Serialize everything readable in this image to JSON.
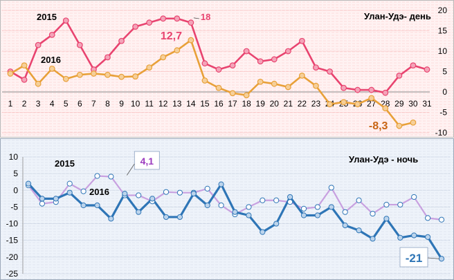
{
  "colors": {
    "day_2015": "#e8436f",
    "day_2016": "#e8a038",
    "night_2015": "#c8a0e0",
    "night_2016": "#2e75b6",
    "grid_top": "#f4a0a0",
    "grid_bottom": "#b8c4d6",
    "label_18": "#e8436f",
    "label_12_7": "#e8436f",
    "label_minus_8_3": "#c86414",
    "label_4_1": "#9b3bbf",
    "label_minus_21": "#2e75b6"
  },
  "chart_data": [
    {
      "type": "line",
      "title": "Улан-Удэ- день",
      "x": [
        1,
        2,
        3,
        4,
        5,
        6,
        7,
        8,
        9,
        10,
        11,
        12,
        13,
        14,
        15,
        16,
        17,
        18,
        19,
        20,
        21,
        22,
        23,
        24,
        25,
        26,
        27,
        28,
        29,
        30,
        31
      ],
      "x_tick_labels": [
        "1",
        "2",
        "3",
        "4",
        "5",
        "6",
        "7",
        "8",
        "9",
        "10",
        "11",
        "12",
        "13",
        "14",
        "15",
        "16",
        "17",
        "18",
        "19",
        "20",
        "21",
        "22",
        "23",
        "24",
        "25",
        "26",
        "27",
        "28",
        "29",
        "30",
        "31"
      ],
      "y_ticks": [
        -10,
        -5,
        0,
        5,
        10,
        15,
        20
      ],
      "ylim": [
        -10,
        20
      ],
      "y_axis_side": "right",
      "grid": true,
      "series": [
        {
          "name": "2015",
          "values": [
            5,
            3,
            11.5,
            14,
            17.5,
            11.5,
            5.5,
            8.5,
            12.5,
            16,
            17,
            18,
            18,
            17,
            7,
            5.5,
            6.5,
            10,
            7.5,
            8,
            10,
            12.5,
            6,
            5,
            1,
            0.5,
            0.5,
            -0.2,
            4,
            6.5,
            5.5
          ]
        },
        {
          "name": "2016",
          "values": [
            4.5,
            6.5,
            2,
            5.7,
            3.2,
            4.2,
            4.5,
            4.2,
            3.7,
            3.8,
            6,
            8.5,
            10.2,
            12.7,
            2.8,
            1,
            -0.3,
            -0.8,
            2.5,
            2,
            1.2,
            4,
            1.5,
            -3,
            -2.5,
            -3,
            -1.5,
            -4,
            -8.3,
            -7.5,
            null
          ]
        }
      ],
      "annotations": [
        {
          "text": "18",
          "series": "2015",
          "x": 14
        },
        {
          "text": "12,7",
          "series": "2016",
          "x": 14
        },
        {
          "text": "-8,3",
          "series": "2016",
          "x": 29
        }
      ]
    },
    {
      "type": "line",
      "title": "Улан-Удэ - ночь",
      "x": [
        1,
        2,
        3,
        4,
        5,
        6,
        7,
        8,
        9,
        10,
        11,
        12,
        13,
        14,
        15,
        16,
        17,
        18,
        19,
        20,
        21,
        22,
        23,
        24,
        25,
        26,
        27,
        28,
        29,
        30,
        31
      ],
      "y_ticks": [
        -25,
        -20,
        -15,
        -10,
        -5,
        0,
        5,
        10
      ],
      "ylim": [
        -25,
        10
      ],
      "y_axis_side": "left",
      "grid": true,
      "series": [
        {
          "name": "2015",
          "values": [
            1.5,
            -4,
            -3.5,
            2,
            -0.3,
            4.3,
            4.1,
            -1.5,
            -1.5,
            -3.3,
            -0.5,
            -0.7,
            -0.7,
            0.5,
            -4.5,
            -7.2,
            -5,
            -3,
            -3,
            -3.5,
            -5.5,
            -5,
            0.8,
            -6.5,
            -3,
            -7,
            -4.3,
            -4.3,
            -2,
            -8.3,
            -8.8
          ]
        },
        {
          "name": "2016",
          "values": [
            2,
            -2.5,
            -2.5,
            -0.7,
            -4.5,
            -4.5,
            -8.5,
            -1,
            -6.5,
            -2.5,
            -8,
            -8,
            -1,
            -4.5,
            1.8,
            -6.5,
            -7.5,
            -12.5,
            -10,
            -2,
            -7.5,
            -7.5,
            -5,
            -10.5,
            -12,
            -14.5,
            -8.5,
            -14.2,
            -13.5,
            -14,
            -20.5
          ]
        }
      ],
      "annotations": [
        {
          "text": "4,1",
          "series": "2015",
          "x": 8
        },
        {
          "text": "-21",
          "series": "2016",
          "x": 31
        }
      ]
    }
  ]
}
